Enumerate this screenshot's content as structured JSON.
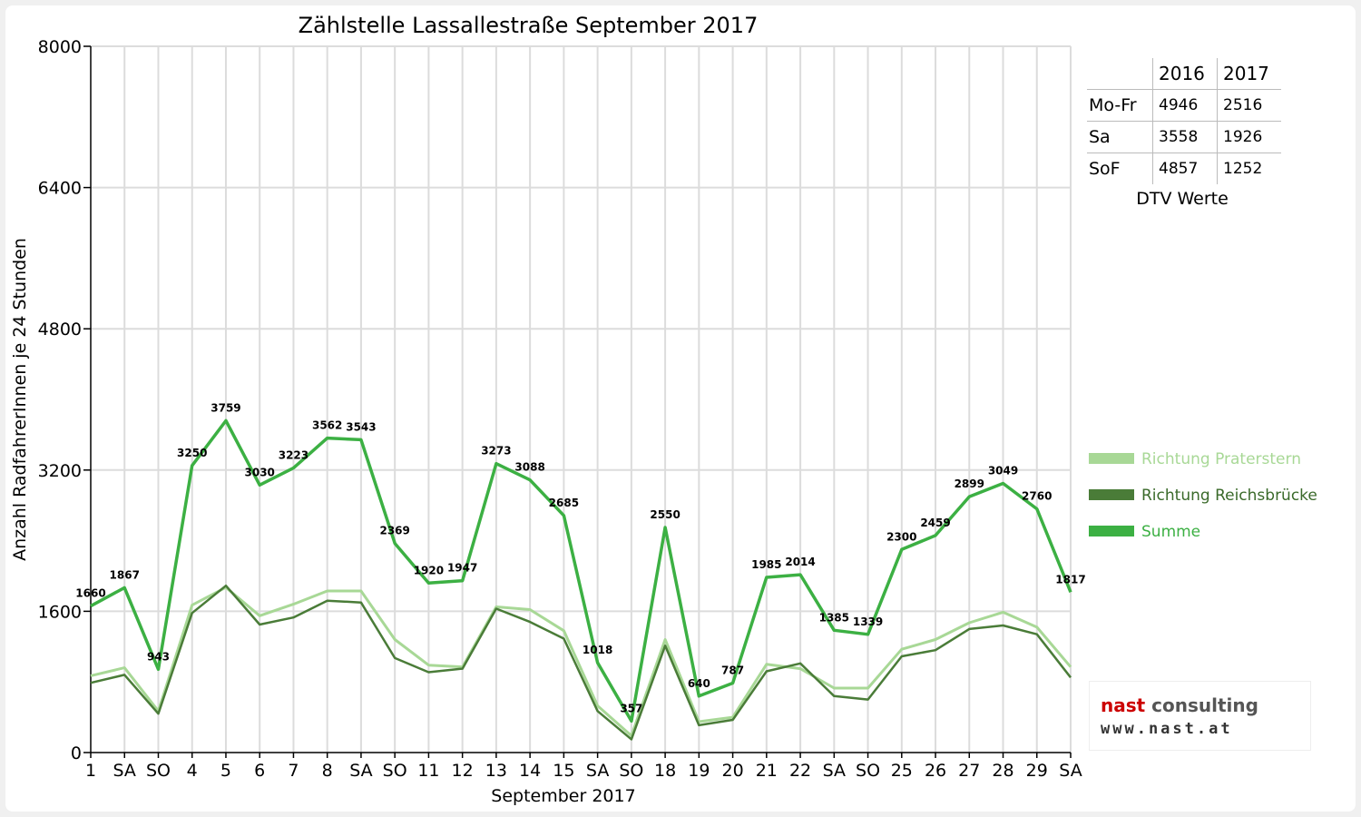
{
  "chart_data": {
    "type": "line",
    "title": "Zählstelle Lassallestraße September 2017",
    "xlabel": "September 2017",
    "ylabel": "Anzahl RadfahrerInnen je 24 Stunden",
    "ylim": [
      0,
      8000
    ],
    "yticks": [
      "0",
      "1600",
      "3200",
      "4800",
      "6400",
      "8000"
    ],
    "categories": [
      "1",
      "SA",
      "SO",
      "4",
      "5",
      "6",
      "7",
      "8",
      "SA",
      "SO",
      "11",
      "12",
      "13",
      "14",
      "15",
      "SA",
      "SO",
      "18",
      "19",
      "20",
      "21",
      "22",
      "SA",
      "SO",
      "25",
      "26",
      "27",
      "28",
      "29",
      "SA"
    ],
    "red_categories": [
      "SO"
    ],
    "grid": true,
    "legend_position": "right",
    "series": [
      {
        "name": "Richtung Praterstern",
        "color": "#a8d896",
        "values": [
          870,
          960,
          470,
          1670,
          1870,
          1550,
          1680,
          1830,
          1830,
          1280,
          990,
          970,
          1650,
          1620,
          1380,
          530,
          190,
          1280,
          350,
          400,
          1000,
          950,
          730,
          730,
          1170,
          1280,
          1470,
          1590,
          1420,
          970
        ]
      },
      {
        "name": "Richtung Reichsbrücke",
        "color": "#4a7c38",
        "values": [
          790,
          880,
          440,
          1580,
          1890,
          1450,
          1530,
          1720,
          1700,
          1070,
          910,
          950,
          1630,
          1480,
          1290,
          470,
          150,
          1210,
          310,
          370,
          920,
          1010,
          640,
          600,
          1090,
          1160,
          1400,
          1440,
          1340,
          850
        ]
      },
      {
        "name": "Summe",
        "color": "#3cb043",
        "labels": true,
        "values": [
          1660,
          1867,
          943,
          3250,
          3759,
          3030,
          3223,
          3562,
          3543,
          2369,
          1920,
          1947,
          3273,
          3088,
          2685,
          1018,
          357,
          2550,
          640,
          787,
          1985,
          2014,
          1385,
          1339,
          2300,
          2459,
          2899,
          3049,
          2760,
          1817
        ]
      }
    ]
  },
  "dtv": {
    "header": [
      "",
      "2016",
      "2017"
    ],
    "rows": [
      [
        "Mo-Fr",
        "4946",
        "2516"
      ],
      [
        "Sa",
        "3558",
        "1926"
      ],
      [
        "SoF",
        "4857",
        "1252"
      ]
    ],
    "caption": "DTV Werte"
  },
  "logo": {
    "name_a": "nast",
    "name_b": " consulting",
    "url": "www.nast.at"
  }
}
